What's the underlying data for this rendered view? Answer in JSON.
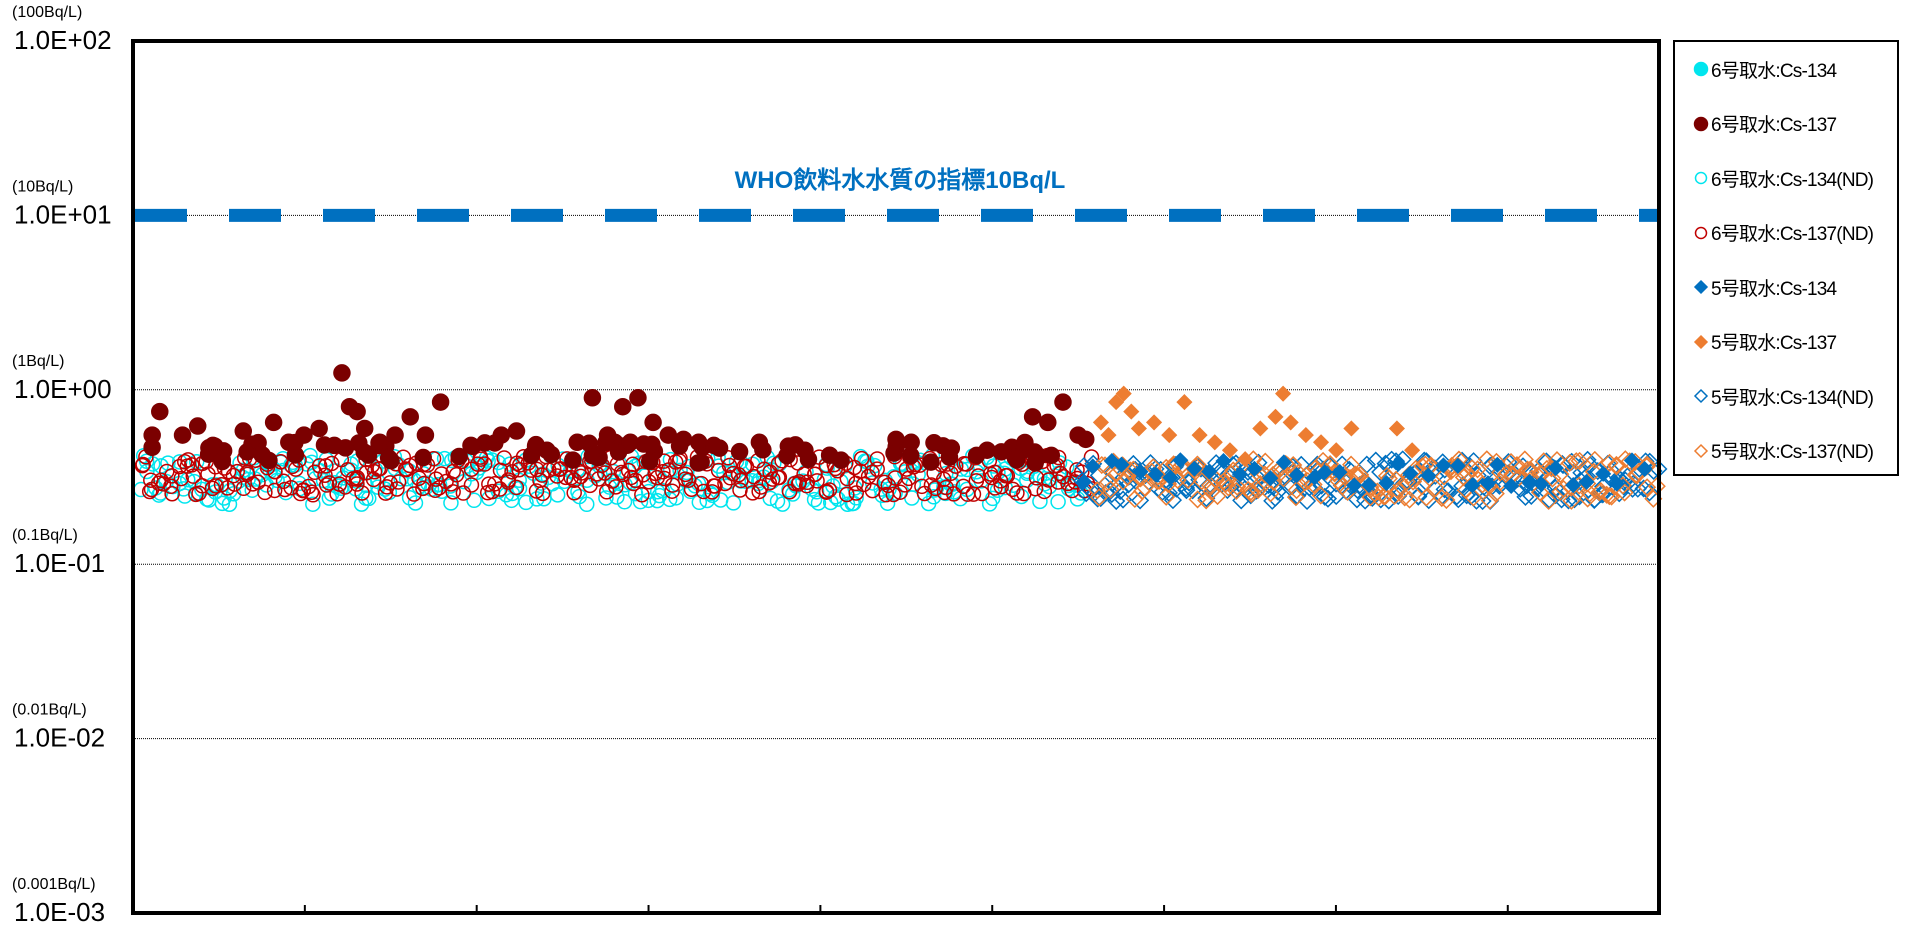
{
  "chart_data": {
    "type": "scatter",
    "y_scale": "log",
    "ylim": [
      0.001,
      100
    ],
    "y_ticks": [
      {
        "value": 100,
        "label": "1.0E+02",
        "unit": "(100Bq/L)"
      },
      {
        "value": 10,
        "label": "1.0E+01",
        "unit": "(10Bq/L)"
      },
      {
        "value": 1,
        "label": "1.0E+00",
        "unit": "(1Bq/L)"
      },
      {
        "value": 0.1,
        "label": "1.0E-01",
        "unit": "(0.1Bq/L)"
      },
      {
        "value": 0.01,
        "label": "1.0E-02",
        "unit": "(0.01Bq/L)"
      },
      {
        "value": 0.001,
        "label": "1.0E-03",
        "unit": "(0.001Bq/L)"
      }
    ],
    "x_tick_count": 9,
    "grid": "horizontal",
    "legend_position": "right",
    "reference_line": {
      "value": 10,
      "label": "WHO飲料水水質の指標10Bq/L",
      "color": "#0070C0"
    },
    "series": [
      {
        "name": "6号取水:Cs-134",
        "marker": "circle",
        "filled": true,
        "color": "#00E5EE",
        "x_range": [
          0,
          0.62
        ],
        "points": []
      },
      {
        "name": "6号取水:Cs-137",
        "marker": "circle",
        "filled": true,
        "color": "#7B0000",
        "x_range": [
          0,
          0.63
        ],
        "points": [
          [
            0.01,
            0.55
          ],
          [
            0.015,
            0.75
          ],
          [
            0.03,
            0.55
          ],
          [
            0.04,
            0.62
          ],
          [
            0.05,
            0.48
          ],
          [
            0.07,
            0.58
          ],
          [
            0.09,
            0.65
          ],
          [
            0.1,
            0.5
          ],
          [
            0.11,
            0.55
          ],
          [
            0.12,
            0.6
          ],
          [
            0.13,
            0.48
          ],
          [
            0.135,
            1.25
          ],
          [
            0.14,
            0.8
          ],
          [
            0.145,
            0.75
          ],
          [
            0.15,
            0.6
          ],
          [
            0.16,
            0.5
          ],
          [
            0.17,
            0.55
          ],
          [
            0.18,
            0.7
          ],
          [
            0.19,
            0.55
          ],
          [
            0.2,
            0.85
          ],
          [
            0.22,
            0.48
          ],
          [
            0.24,
            0.55
          ],
          [
            0.25,
            0.58
          ],
          [
            0.27,
            0.45
          ],
          [
            0.29,
            0.5
          ],
          [
            0.3,
            0.42
          ],
          [
            0.3,
            0.9
          ],
          [
            0.31,
            0.55
          ],
          [
            0.32,
            0.8
          ],
          [
            0.325,
            0.5
          ],
          [
            0.33,
            0.9
          ],
          [
            0.34,
            0.65
          ],
          [
            0.35,
            0.55
          ],
          [
            0.36,
            0.52
          ],
          [
            0.37,
            0.5
          ],
          [
            0.38,
            0.48
          ],
          [
            0.41,
            0.5
          ],
          [
            0.44,
            0.45
          ],
          [
            0.5,
            0.52
          ],
          [
            0.51,
            0.5
          ],
          [
            0.59,
            0.7
          ],
          [
            0.6,
            0.65
          ],
          [
            0.61,
            0.85
          ],
          [
            0.62,
            0.55
          ],
          [
            0.625,
            0.52
          ]
        ]
      },
      {
        "name": "6号取水:Cs-134(ND)",
        "marker": "circle",
        "filled": false,
        "color": "#00E5EE",
        "x_range": [
          0,
          0.62
        ],
        "points": []
      },
      {
        "name": "6号取水:Cs-137(ND)",
        "marker": "circle",
        "filled": false,
        "color": "#C00000",
        "x_range": [
          0,
          0.63
        ],
        "points": []
      },
      {
        "name": "5号取水:Cs-134",
        "marker": "diamond",
        "filled": true,
        "color": "#0070C0",
        "x_range": [
          0.62,
          1.0
        ],
        "points": []
      },
      {
        "name": "5号取水:Cs-137",
        "marker": "diamond",
        "filled": true,
        "color": "#ED7D31",
        "x_range": [
          0.63,
          0.84
        ],
        "points": [
          [
            0.635,
            0.65
          ],
          [
            0.64,
            0.55
          ],
          [
            0.645,
            0.85
          ],
          [
            0.65,
            0.95
          ],
          [
            0.655,
            0.75
          ],
          [
            0.66,
            0.6
          ],
          [
            0.67,
            0.65
          ],
          [
            0.68,
            0.55
          ],
          [
            0.69,
            0.85
          ],
          [
            0.7,
            0.55
          ],
          [
            0.71,
            0.5
          ],
          [
            0.72,
            0.45
          ],
          [
            0.73,
            0.4
          ],
          [
            0.74,
            0.6
          ],
          [
            0.75,
            0.7
          ],
          [
            0.755,
            0.95
          ],
          [
            0.76,
            0.65
          ],
          [
            0.77,
            0.55
          ],
          [
            0.78,
            0.5
          ],
          [
            0.79,
            0.45
          ],
          [
            0.8,
            0.6
          ],
          [
            0.83,
            0.6
          ],
          [
            0.84,
            0.45
          ]
        ]
      },
      {
        "name": "5号取水:Cs-134(ND)",
        "marker": "diamond",
        "filled": false,
        "color": "#0070C0",
        "x_range": [
          0.62,
          1.0
        ],
        "points": []
      },
      {
        "name": "5号取水:Cs-137(ND)",
        "marker": "diamond",
        "filled": false,
        "color": "#ED7D31",
        "x_range": [
          0.63,
          1.0
        ],
        "points": []
      }
    ]
  }
}
